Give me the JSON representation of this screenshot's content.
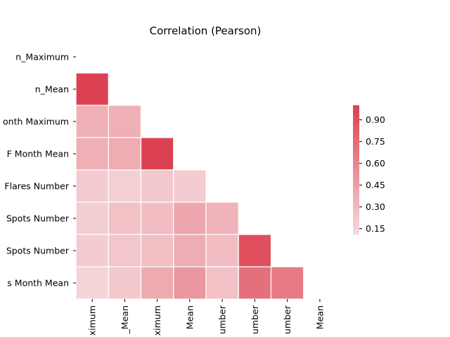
{
  "chart_data": {
    "type": "heatmap",
    "title": "Correlation (Pearson)",
    "row_labels": [
      "n_Maximum",
      "n_Mean",
      "onth Maximum",
      "F Month Mean",
      "Flares Number",
      "Spots Number",
      "Spots Number",
      "s Month Mean"
    ],
    "col_labels": [
      "ximum",
      "_Mean",
      "ximum",
      "Mean",
      "umber",
      "umber",
      "umber",
      "Mean"
    ],
    "mask": "upper-triangle",
    "values": [
      [
        null,
        null,
        null,
        null,
        null,
        null,
        null,
        null
      ],
      [
        0.99,
        null,
        null,
        null,
        null,
        null,
        null,
        null
      ],
      [
        0.35,
        0.36,
        null,
        null,
        null,
        null,
        null,
        null
      ],
      [
        0.36,
        0.38,
        0.99,
        null,
        null,
        null,
        null,
        null
      ],
      [
        0.2,
        0.18,
        0.22,
        0.2,
        null,
        null,
        null,
        null
      ],
      [
        0.19,
        0.26,
        0.28,
        0.41,
        0.34,
        null,
        null,
        null
      ],
      [
        0.2,
        0.23,
        0.27,
        0.37,
        0.28,
        0.91,
        null,
        null
      ],
      [
        0.15,
        0.21,
        0.39,
        0.5,
        0.26,
        0.72,
        0.66,
        null
      ]
    ],
    "colorbar": {
      "ticks": [
        "0.15",
        "0.30",
        "0.45",
        "0.60",
        "0.75",
        "0.90"
      ],
      "tick_values": [
        0.15,
        0.3,
        0.45,
        0.6,
        0.75,
        0.9
      ],
      "vmin": 0.11,
      "vmax": 1.0,
      "color_low": "#f6dbde",
      "color_high": "#dc3f4f"
    }
  }
}
